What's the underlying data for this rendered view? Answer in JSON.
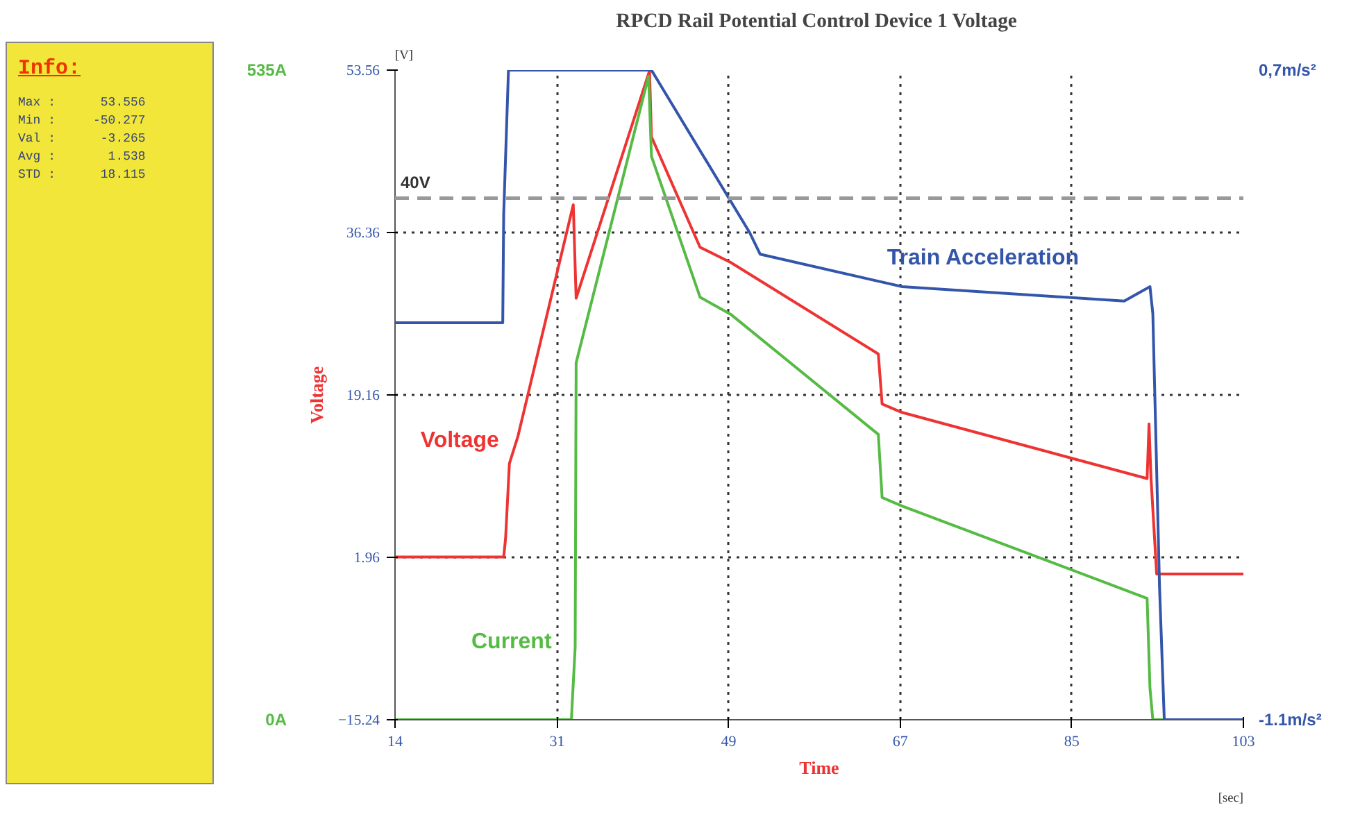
{
  "chart_data": {
    "type": "line",
    "title": "RPCD Rail Potential Control Device 1  Voltage",
    "xlabel": "Time",
    "ylabel": "Voltage",
    "annotations": [
      "[V]",
      "[sec]",
      "Info:",
      "Max :      53.556",
      "Min :     -50.277",
      "Val :      -3.265",
      "Avg :       1.538",
      "STD :      18.115"
    ],
    "xlim": [
      14,
      103
    ],
    "xticks": [
      14,
      31,
      49,
      67,
      85,
      103
    ],
    "ylim": [
      -15.24,
      53.56
    ],
    "yticks": [
      -15.24,
      1.96,
      19.16,
      36.36,
      53.56
    ],
    "y2lim": [
      0,
      535
    ],
    "y2ticks": [
      {
        "value": 0,
        "label": "0A"
      },
      {
        "value": 535,
        "label": "535A"
      }
    ],
    "y3lim": [
      -1.1,
      0.7
    ],
    "y3ticks": [
      {
        "value": -1.1,
        "label": "-1.1m/s²"
      },
      {
        "value": 0.7,
        "label": "0,7m/s²"
      }
    ],
    "grid": true,
    "ref_lines": [
      {
        "axis": "y",
        "value": 40,
        "label": "40V",
        "color": "#999999",
        "line_style": "dashed"
      }
    ],
    "series": [
      {
        "name": "Voltage",
        "color": "#ee3333",
        "x": [
          14,
          25.4,
          25.6,
          26.0,
          26.9,
          32.7,
          33.0,
          40.7,
          40.9,
          46.0,
          49.2,
          64.7,
          65.1,
          67.2,
          92.9,
          93.1,
          93.3,
          93.9,
          103
        ],
        "values": [
          2.0,
          2.0,
          4.0,
          11.9,
          14.8,
          39.3,
          29.4,
          53.5,
          46.5,
          34.8,
          33.2,
          23.5,
          18.2,
          17.3,
          10.3,
          16.1,
          10.5,
          0.2,
          0.2
        ]
      },
      {
        "name": "Current",
        "color": "#55bb44",
        "axis": "y2",
        "x": [
          14,
          32.5,
          32.9,
          33.0,
          40.6,
          40.9,
          46.0,
          49.2,
          64.7,
          65.1,
          67.2,
          92.9,
          93.2,
          93.5,
          103
        ],
        "values": [
          0,
          0,
          60,
          294,
          530,
          464,
          348,
          334,
          235,
          183,
          176,
          100,
          26,
          0,
          0
        ]
      },
      {
        "name": "Train Acceleration",
        "color": "#3355aa",
        "axis": "y3",
        "x": [
          14,
          25.3,
          25.4,
          25.9,
          40.9,
          51.2,
          52.3,
          67.2,
          90.5,
          93.2,
          93.5,
          94.2,
          94.7,
          103
        ],
        "values": [
          0.0,
          0.0,
          0.3,
          0.7,
          0.7,
          0.25,
          0.19,
          0.1,
          0.06,
          0.1,
          0.025,
          -0.73,
          -1.1,
          -1.1
        ]
      }
    ]
  }
}
